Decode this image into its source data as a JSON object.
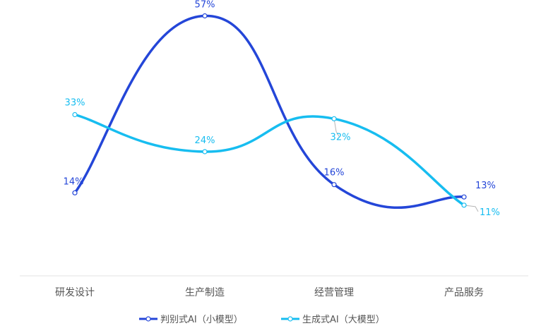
{
  "chart_data": {
    "type": "line",
    "smooth": true,
    "categories": [
      "研发设计",
      "生产制造",
      "经营管理",
      "产品服务"
    ],
    "series": [
      {
        "name": "判别式AI（小模型）",
        "values": [
          14,
          57,
          16,
          13
        ],
        "labels": [
          "14%",
          "57%",
          "16%",
          "13%"
        ],
        "color": "#2446d8"
      },
      {
        "name": "生成式AI（大模型）",
        "values": [
          33,
          24,
          32,
          11
        ],
        "labels": [
          "33%",
          "24%",
          "32%",
          "11%"
        ],
        "color": "#17bdf0"
      }
    ],
    "ylim": [
      0,
      60
    ],
    "y_axis_visible": false,
    "grid": false,
    "legend_position": "bottom-center"
  }
}
